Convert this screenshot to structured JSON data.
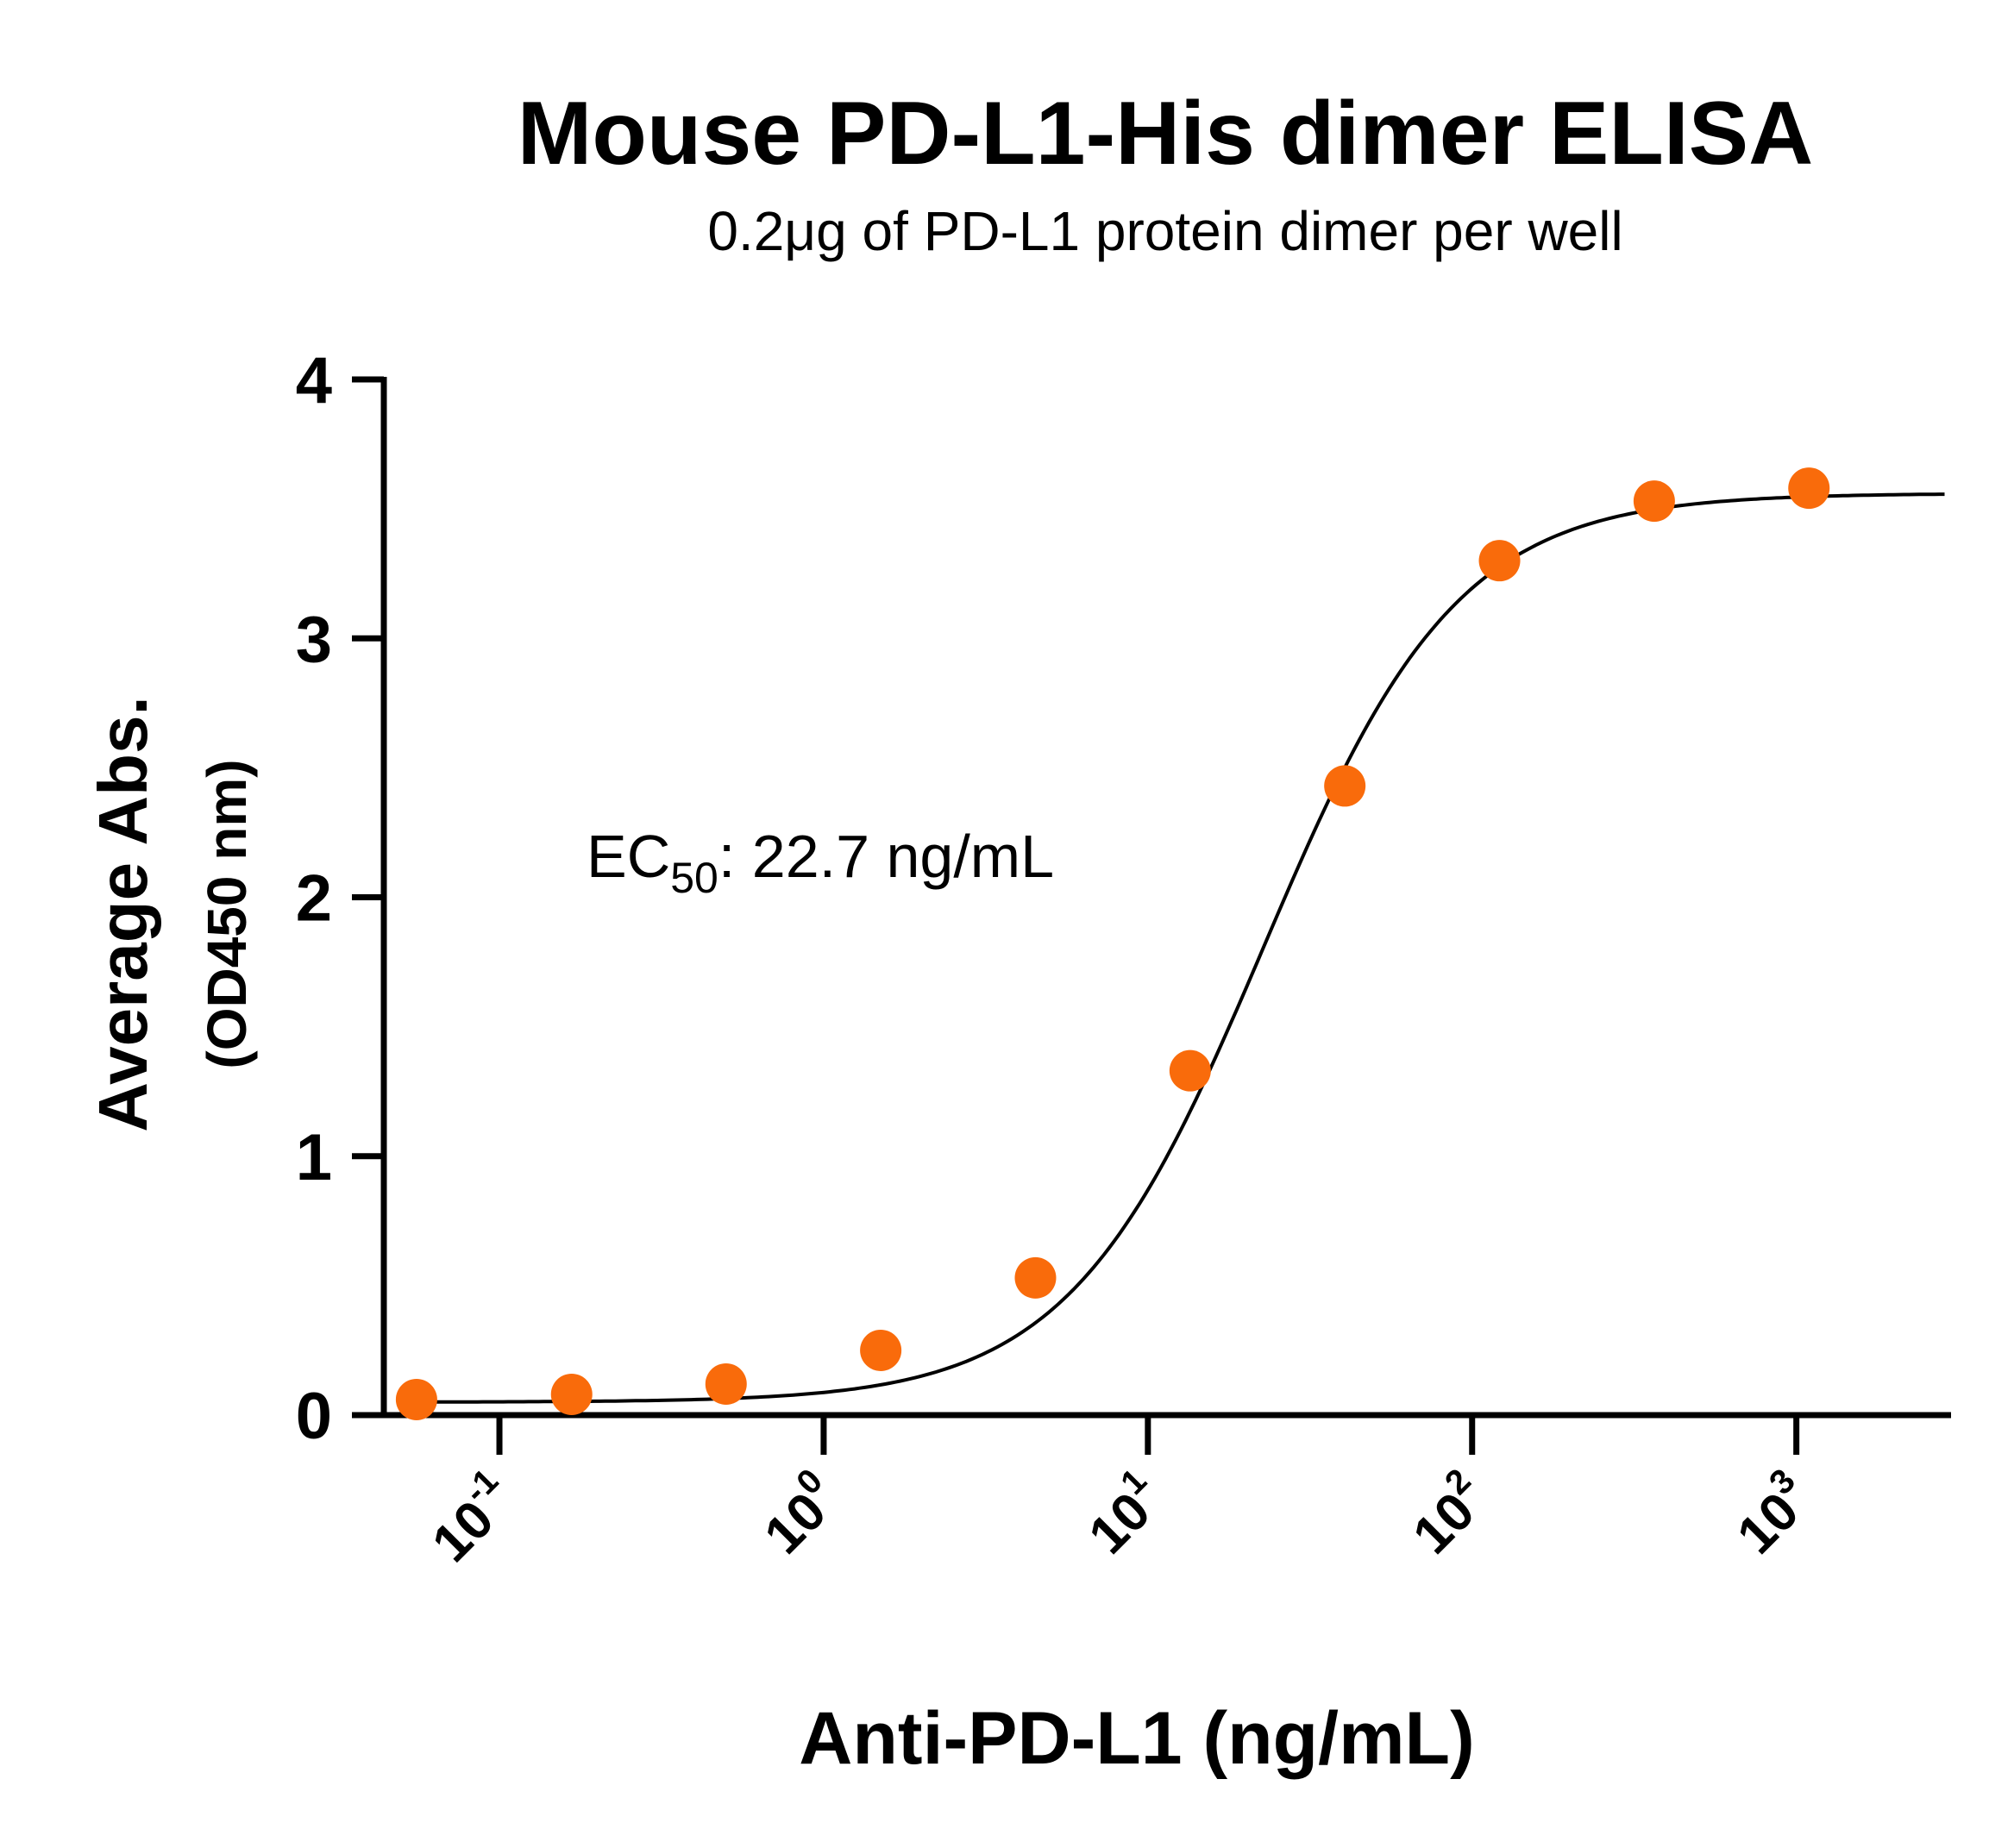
{
  "chart_data": {
    "type": "scatter",
    "title": "Mouse PD-L1-His dimer ELISA",
    "subtitle": "0.2μg of PD-L1 protein dimer per well",
    "xlabel": "Anti-PD-L1 (ng/mL)",
    "ylabel": "Average Abs.",
    "ylabel_sub": "(OD450 nm)",
    "x_scale": "log",
    "xlim": [
      0.044,
      3000
    ],
    "ylim": [
      0,
      4
    ],
    "x_ticks": [
      {
        "value": 0.1,
        "base": "10",
        "exp": "-1"
      },
      {
        "value": 1,
        "base": "10",
        "exp": "0"
      },
      {
        "value": 10,
        "base": "10",
        "exp": "1"
      },
      {
        "value": 100,
        "base": "10",
        "exp": "2"
      },
      {
        "value": 1000,
        "base": "10",
        "exp": "3"
      }
    ],
    "y_ticks": [
      "0",
      "1",
      "2",
      "3",
      "4"
    ],
    "series": [
      {
        "x": [
          0.0555,
          0.167,
          0.5,
          1.5,
          4.5,
          13.5,
          40.5,
          121.5,
          364.5,
          1093.5
        ],
        "y": [
          0.06,
          0.08,
          0.12,
          0.25,
          0.53,
          1.33,
          2.43,
          3.3,
          3.53,
          3.58
        ]
      }
    ],
    "fit": {
      "bottom": 0.05,
      "top": 3.56,
      "ec50": 22.7,
      "hill": 1.45
    },
    "annotation": {
      "prefix": "EC",
      "sub": "50",
      "suffix": ": 22.7 ng/mL"
    },
    "grid": false,
    "colors": {
      "marker": "#F96B0B",
      "curve": "#000000",
      "axis": "#000000"
    }
  }
}
